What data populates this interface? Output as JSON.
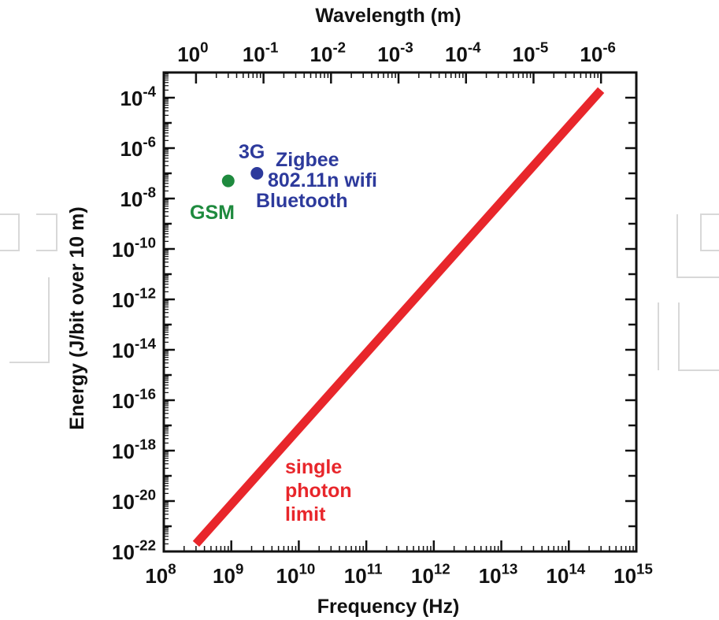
{
  "chart_data": {
    "type": "scatter",
    "title": "",
    "xlabel": "Frequency (Hz)",
    "ylabel": "Energy (J/bit over 10 m)",
    "top_axis_label": "Wavelength (m)",
    "x_scale": "log",
    "y_scale": "log",
    "xlim": [
      100000000.0,
      1000000000000000.0
    ],
    "ylim": [
      1e-22,
      0.001
    ],
    "grid": false,
    "x_ticks": [
      {
        "value": 100000000.0,
        "base": "10",
        "exp": "8"
      },
      {
        "value": 1000000000.0,
        "base": "10",
        "exp": "9"
      },
      {
        "value": 10000000000.0,
        "base": "10",
        "exp": "10"
      },
      {
        "value": 100000000000.0,
        "base": "10",
        "exp": "11"
      },
      {
        "value": 1000000000000.0,
        "base": "10",
        "exp": "12"
      },
      {
        "value": 10000000000000.0,
        "base": "10",
        "exp": "13"
      },
      {
        "value": 100000000000000.0,
        "base": "10",
        "exp": "14"
      },
      {
        "value": 1000000000000000.0,
        "base": "10",
        "exp": "15"
      }
    ],
    "y_ticks": [
      {
        "value": 1e-22,
        "base": "10",
        "exp": "-22"
      },
      {
        "value": 1e-20,
        "base": "10",
        "exp": "-20"
      },
      {
        "value": 1e-18,
        "base": "10",
        "exp": "-18"
      },
      {
        "value": 1e-16,
        "base": "10",
        "exp": "-16"
      },
      {
        "value": 1e-14,
        "base": "10",
        "exp": "-14"
      },
      {
        "value": 1e-12,
        "base": "10",
        "exp": "-12"
      },
      {
        "value": 1e-10,
        "base": "10",
        "exp": "-10"
      },
      {
        "value": 1e-08,
        "base": "10",
        "exp": "-8"
      },
      {
        "value": 1e-06,
        "base": "10",
        "exp": "-6"
      },
      {
        "value": 0.0001,
        "base": "10",
        "exp": "-4"
      }
    ],
    "top_ticks": [
      {
        "wavelength": 1,
        "base": "10",
        "exp": "0"
      },
      {
        "wavelength": 0.1,
        "base": "10",
        "exp": "-1"
      },
      {
        "wavelength": 0.01,
        "base": "10",
        "exp": "-2"
      },
      {
        "wavelength": 0.001,
        "base": "10",
        "exp": "-3"
      },
      {
        "wavelength": 0.0001,
        "base": "10",
        "exp": "-4"
      },
      {
        "wavelength": 1e-05,
        "base": "10",
        "exp": "-5"
      },
      {
        "wavelength": 1e-06,
        "base": "10",
        "exp": "-6"
      }
    ],
    "series": [
      {
        "type": "line",
        "color": "#e8262b",
        "x": [
          300000000.0,
          300000000000000.0
        ],
        "y": [
          2e-22,
          0.0002
        ]
      }
    ],
    "points": [
      {
        "x": 900000000.0,
        "y": 5e-08,
        "color": "#1e8a3e"
      },
      {
        "x": 2400000000.0,
        "y": 1e-07,
        "color": "#2d3a9c"
      }
    ],
    "annotations": [
      {
        "lines": [
          "GSM"
        ],
        "color": "#1e8a3e"
      },
      {
        "lines": [
          "3G"
        ],
        "color": "#2d3a9c"
      },
      {
        "lines": [
          "Zigbee",
          "802.11n wifi",
          "Bluetooth"
        ],
        "color": "#2d3a9c"
      },
      {
        "lines": [
          "single",
          "photon",
          "limit"
        ],
        "color": "#e8262b"
      }
    ]
  }
}
